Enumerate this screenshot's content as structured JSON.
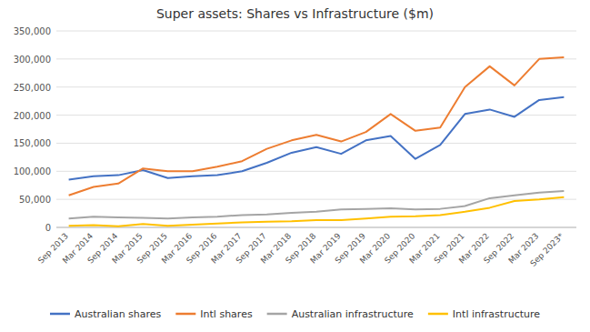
{
  "chart_data": {
    "type": "line",
    "title": "Super assets: Shares vs Infrastructure ($m)",
    "categories": [
      "Sep 2013",
      "Mar 2014",
      "Sep 2014",
      "Mar 2015",
      "Sep 2015",
      "Mar 2016",
      "Sep 2016",
      "Mar 2017",
      "Sep 2017",
      "Mar 2018",
      "Sep 2018",
      "Mar 2019",
      "Sep 2019",
      "Mar 2020",
      "Sep 2020",
      "Mar 2021",
      "Sep 2021",
      "Mar 2022",
      "Sep 2022",
      "Mar 2023",
      "Sep 2023*"
    ],
    "series": [
      {
        "name": "Australian shares",
        "color": "#4472C4",
        "values": [
          85000,
          91000,
          93000,
          102000,
          88000,
          91000,
          93000,
          100000,
          115000,
          133000,
          143000,
          131000,
          155000,
          163000,
          122000,
          147000,
          202000,
          210000,
          197000,
          227000,
          232000
        ]
      },
      {
        "name": "Intl shares",
        "color": "#ED7D31",
        "values": [
          57000,
          72000,
          78000,
          105000,
          100000,
          100000,
          108000,
          118000,
          140000,
          155000,
          165000,
          153000,
          170000,
          202000,
          172000,
          178000,
          250000,
          287000,
          253000,
          300000,
          303000
        ]
      },
      {
        "name": "Australian infrastructure",
        "color": "#A5A5A5",
        "values": [
          16000,
          19000,
          18000,
          17000,
          16000,
          18000,
          19000,
          22000,
          23000,
          26000,
          28000,
          32000,
          33000,
          34000,
          32000,
          33000,
          38000,
          52000,
          57000,
          62000,
          65000
        ]
      },
      {
        "name": "Intl infrastructure",
        "color": "#FFC000",
        "values": [
          3000,
          4000,
          2000,
          6000,
          3000,
          5000,
          7000,
          9000,
          10000,
          11000,
          13000,
          13000,
          16000,
          19000,
          20000,
          22000,
          28000,
          35000,
          47000,
          50000,
          54000
        ]
      }
    ],
    "ylim": [
      0,
      350000
    ],
    "yticks": [
      0,
      {
        "value": 50000,
        "label": "50,000"
      },
      {
        "value": 100000,
        "label": "100,000"
      },
      {
        "value": 150000,
        "label": "150,000"
      },
      {
        "value": 200000,
        "label": "200,000"
      },
      {
        "value": 250000,
        "label": "250,000"
      },
      {
        "value": 300000,
        "label": "300,000"
      },
      {
        "value": 350000,
        "label": "350,000"
      }
    ],
    "grid": true,
    "legend": "bottom"
  }
}
